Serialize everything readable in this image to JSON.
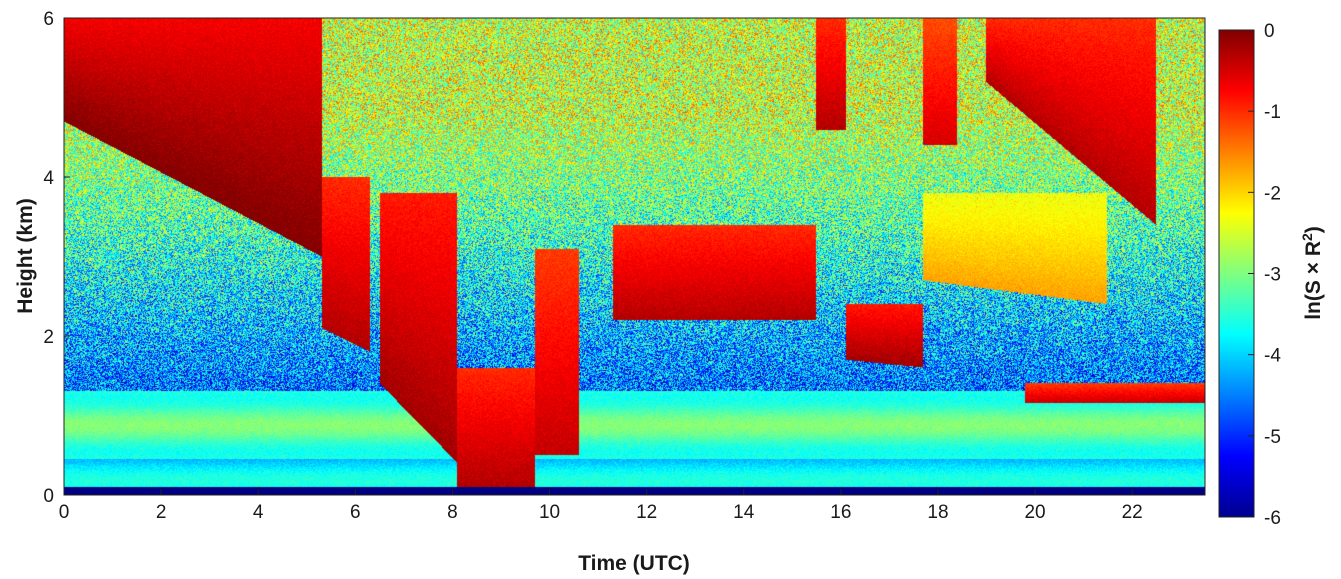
{
  "chart_data": {
    "type": "heatmap",
    "title": "",
    "xlabel": "Time (UTC)",
    "ylabel": "Height (km)",
    "colorbar_label": "ln(S × R²)",
    "colorbar_label_parts": {
      "prefix": "ln(S × R",
      "superscript": "2",
      "suffix": ")"
    },
    "colormap": "jet",
    "xlim": [
      0,
      23.5
    ],
    "ylim": [
      0,
      6
    ],
    "clim": [
      -6,
      0
    ],
    "x_ticks": [
      "0",
      "2",
      "4",
      "6",
      "8",
      "10",
      "12",
      "14",
      "16",
      "18",
      "20",
      "22"
    ],
    "y_ticks": [
      "0",
      "2",
      "4",
      "6"
    ],
    "colorbar_ticks": [
      "0",
      "-1",
      "-2",
      "-3",
      "-4",
      "-5",
      "-6"
    ],
    "features": {
      "near_surface_layer": {
        "height_range_km": [
          0.0,
          0.1
        ],
        "value": -6
      },
      "boundary_layer": {
        "height_range_km": [
          0.1,
          1.3
        ],
        "value": -3.3
      },
      "free_troposphere_value": -4.6,
      "upper_noise_value": -2.5,
      "cloud_layers": [
        {
          "time_range": [
            0.0,
            5.3
          ],
          "base_km_start": 4.7,
          "base_km_end": 3.0,
          "top_km": 6.0,
          "value": 0
        },
        {
          "time_range": [
            5.3,
            6.3
          ],
          "base_km_start": 2.1,
          "base_km_end": 1.8,
          "top_km": 4.0,
          "value": -0.3
        },
        {
          "time_range": [
            6.5,
            8.1
          ],
          "base_km_start": 1.4,
          "base_km_end": 0.4,
          "top_km": 3.8,
          "value": -0.2
        },
        {
          "time_range": [
            8.1,
            9.7
          ],
          "base_km_start": 0.1,
          "base_km_end": 0.1,
          "top_km": 1.6,
          "value": -0.3
        },
        {
          "time_range": [
            9.7,
            10.6
          ],
          "base_km_start": 0.5,
          "base_km_end": 0.5,
          "top_km": 3.1,
          "value": -0.4
        },
        {
          "time_range": [
            11.3,
            15.5
          ],
          "base_km_start": 2.2,
          "base_km_end": 2.2,
          "top_km": 3.4,
          "value": -0.3
        },
        {
          "time_range": [
            15.5,
            16.1
          ],
          "base_km_start": 4.6,
          "base_km_end": 4.6,
          "top_km": 6.0,
          "value": -0.3
        },
        {
          "time_range": [
            16.1,
            17.7
          ],
          "base_km_start": 1.7,
          "base_km_end": 1.6,
          "top_km": 2.4,
          "value": -0.2
        },
        {
          "time_range": [
            17.7,
            18.4
          ],
          "base_km_start": 4.4,
          "base_km_end": 4.4,
          "top_km": 6.0,
          "value": -0.5
        },
        {
          "time_range": [
            17.7,
            21.5
          ],
          "base_km_start": 2.7,
          "base_km_end": 2.4,
          "top_km": 3.8,
          "value": -1.7
        },
        {
          "time_range": [
            19.0,
            22.5
          ],
          "base_km_start": 5.2,
          "base_km_end": 3.4,
          "top_km": 6.0,
          "value": -0.3
        },
        {
          "time_range": [
            19.8,
            23.5
          ],
          "base_km_start": 1.15,
          "base_km_end": 1.15,
          "top_km": 1.4,
          "value": -0.4
        }
      ]
    }
  }
}
